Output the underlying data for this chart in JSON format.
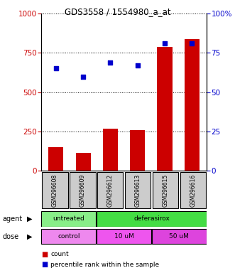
{
  "title": "GDS3558 / 1554980_a_at",
  "samples": [
    "GSM296608",
    "GSM296609",
    "GSM296612",
    "GSM296613",
    "GSM296615",
    "GSM296616"
  ],
  "counts": [
    150,
    115,
    265,
    258,
    790,
    840
  ],
  "percentiles": [
    65,
    60,
    69,
    67,
    81,
    81
  ],
  "bar_color": "#cc0000",
  "dot_color": "#0000cc",
  "ylim_left": [
    0,
    1000
  ],
  "ylim_right": [
    0,
    100
  ],
  "yticks_left": [
    0,
    250,
    500,
    750,
    1000
  ],
  "yticks_right": [
    0,
    25,
    50,
    75,
    100
  ],
  "ytick_labels_right": [
    "0",
    "25",
    "50",
    "75",
    "100%"
  ],
  "agent_data": [
    {
      "text": "untreated",
      "start": 0,
      "end": 2,
      "color": "#88ee88"
    },
    {
      "text": "deferasirox",
      "start": 2,
      "end": 6,
      "color": "#44dd44"
    }
  ],
  "dose_data": [
    {
      "text": "control",
      "start": 0,
      "end": 2,
      "color": "#ee88ee"
    },
    {
      "text": "10 uM",
      "start": 2,
      "end": 4,
      "color": "#ee55ee"
    },
    {
      "text": "50 uM",
      "start": 4,
      "end": 6,
      "color": "#dd44dd"
    }
  ],
  "sample_box_color": "#cccccc",
  "background_color": "#ffffff",
  "left_axis_color": "#cc0000",
  "right_axis_color": "#0000cc"
}
